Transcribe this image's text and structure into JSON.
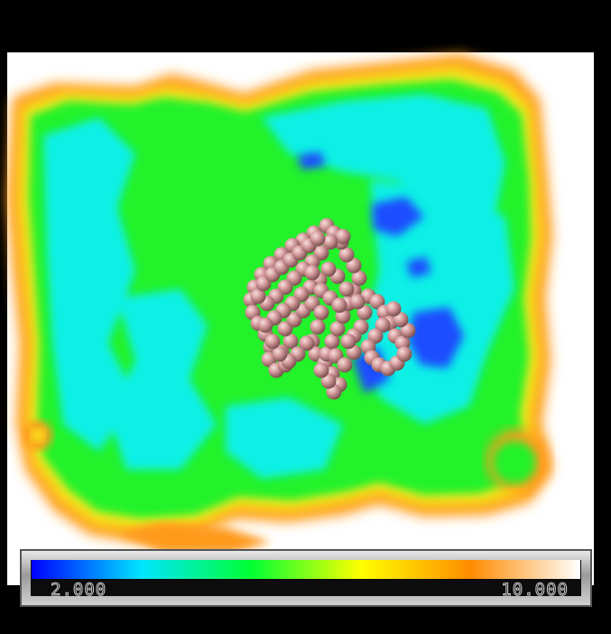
{
  "colorbar": {
    "min_label": "2.000",
    "max_label": "10.000",
    "stops": [
      "#0000ff",
      "#00e5ff",
      "#00ff33",
      "#ffff00",
      "#ff8c00",
      "#ffffff"
    ]
  },
  "colors": {
    "background": "#000000",
    "canvas": "#ffffff",
    "molecule": "#d49a9a"
  }
}
